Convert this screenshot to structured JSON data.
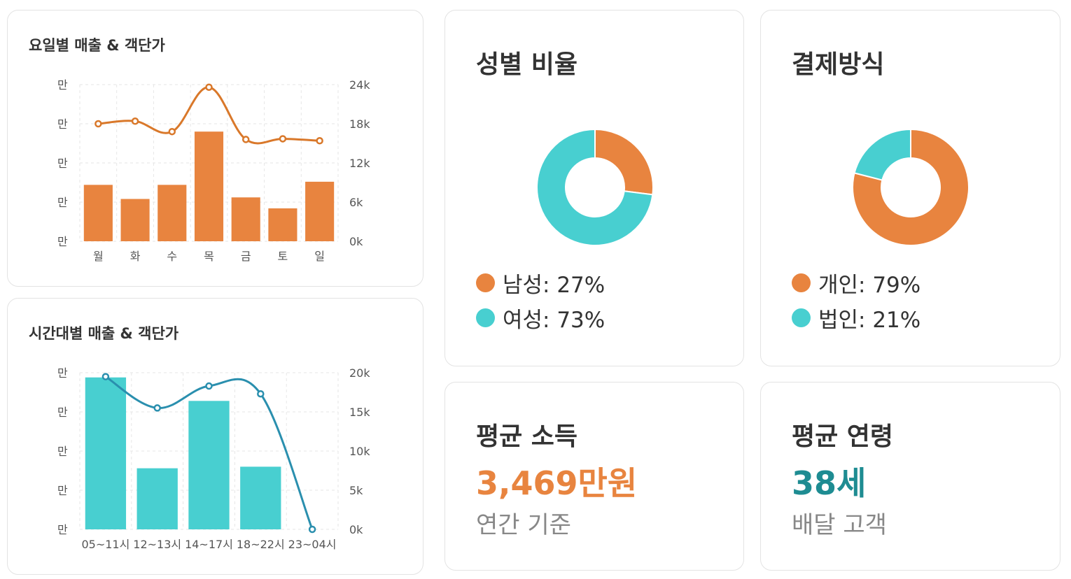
{
  "colors": {
    "orange": "#E8843F",
    "cyan": "#48CFD0",
    "orange_line": "#D9782A",
    "teal_line": "#2A8FAE",
    "teal_text": "#1E8C92"
  },
  "chart_data": [
    {
      "type": "bar",
      "title": "요일별 매출 & 객단가",
      "categories": [
        "월",
        "화",
        "수",
        "목",
        "금",
        "토",
        "일"
      ],
      "left_ticks": [
        "만",
        "만",
        "만",
        "만",
        "만"
      ],
      "right_ticks": [
        "24k",
        "18k",
        "12k",
        "6k",
        "0k"
      ],
      "bar_values": [
        0.36,
        0.27,
        0.36,
        0.7,
        0.28,
        0.21,
        0.38
      ],
      "line_values": [
        18000,
        18400,
        16800,
        23600,
        15600,
        15700,
        15400
      ],
      "ylim_right": [
        0,
        24000
      ]
    },
    {
      "type": "bar",
      "title": "시간대별 매출 & 객단가",
      "categories": [
        "05~11시",
        "12~13시",
        "14~17시",
        "18~22시",
        "23~04시"
      ],
      "left_ticks": [
        "만",
        "만",
        "만",
        "만",
        "만"
      ],
      "right_ticks": [
        "20k",
        "15k",
        "10k",
        "5k",
        "0k"
      ],
      "bar_values": [
        0.97,
        0.39,
        0.82,
        0.4,
        0
      ],
      "line_values": [
        19500,
        15500,
        18300,
        17300,
        0
      ],
      "ylim_right": [
        0,
        20000
      ]
    },
    {
      "type": "pie",
      "title": "성별 비율",
      "slices": [
        {
          "label": "남성",
          "value": 27
        },
        {
          "label": "여성",
          "value": 73
        }
      ]
    },
    {
      "type": "pie",
      "title": "결제방식",
      "slices": [
        {
          "label": "개인",
          "value": 79
        },
        {
          "label": "법인",
          "value": 21
        }
      ]
    }
  ],
  "gender": {
    "legend": [
      "남성: 27%",
      "여성: 73%"
    ]
  },
  "payment": {
    "legend": [
      "개인: 79%",
      "법인: 21%"
    ]
  },
  "income": {
    "title": "평균 소득",
    "value": "3,469만원",
    "caption": "연간 기준"
  },
  "age": {
    "title": "평균 연령",
    "value": "38세",
    "caption": "배달 고객"
  }
}
